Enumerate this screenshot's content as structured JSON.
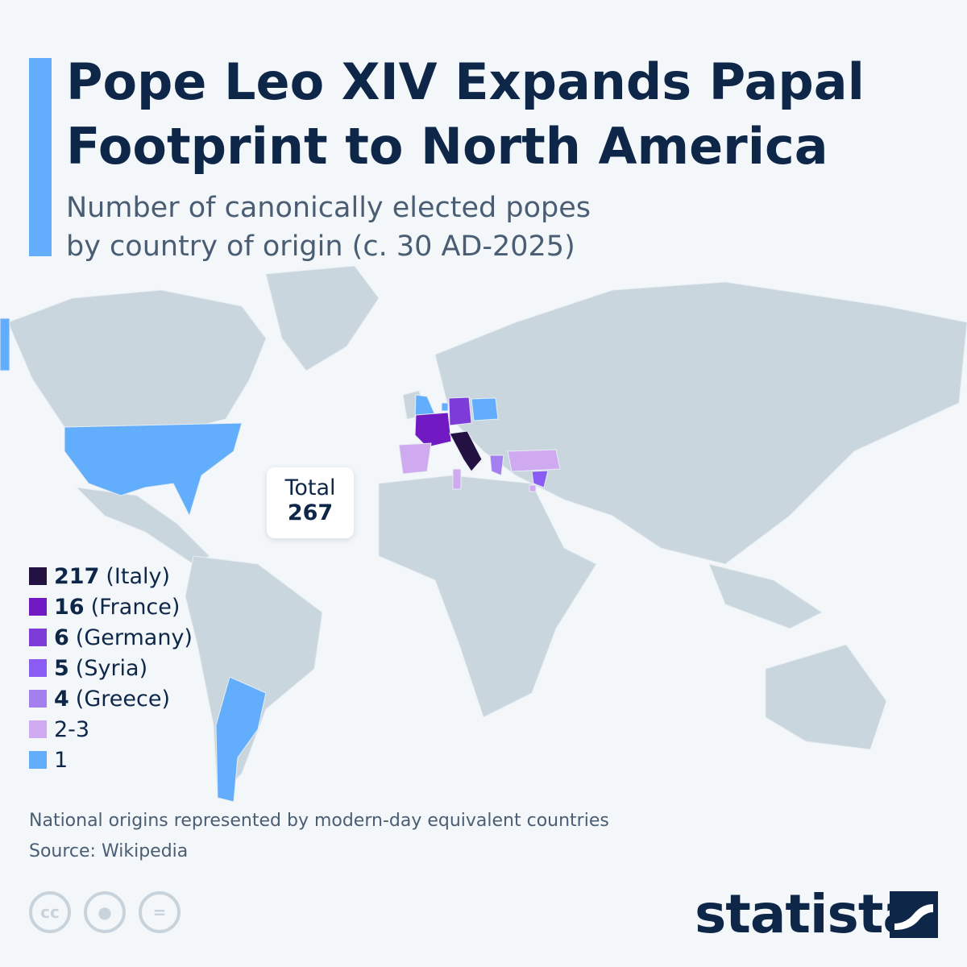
{
  "title": "Pope Leo XIV Expands Papal Footprint to North America",
  "subtitle_line1": "Number of canonically elected popes",
  "subtitle_line2": "by country of origin (c. 30 AD-2025)",
  "total": {
    "label": "Total",
    "value": "267"
  },
  "legend": [
    {
      "value": "217",
      "label": "(Italy)",
      "color": "#231141"
    },
    {
      "value": "16",
      "label": "(France)",
      "color": "#7119c2"
    },
    {
      "value": "6",
      "label": "(Germany)",
      "color": "#7d3bd8"
    },
    {
      "value": "5",
      "label": "(Syria)",
      "color": "#8b5cf3"
    },
    {
      "value": "4",
      "label": "(Greece)",
      "color": "#a47ff0"
    },
    {
      "value": "",
      "label": "2-3",
      "color": "#cfaaf0"
    },
    {
      "value": "",
      "label": "1",
      "color": "#62aefc"
    }
  ],
  "colors": {
    "land": "#c9d6de",
    "background": "#f3f7fa"
  },
  "note": "National origins represented by modern-day equivalent countries",
  "source": "Source: Wikipedia",
  "license_icons": [
    "cc-icon",
    "attribution-icon",
    "no-derivatives-icon"
  ],
  "brand": "statista"
}
